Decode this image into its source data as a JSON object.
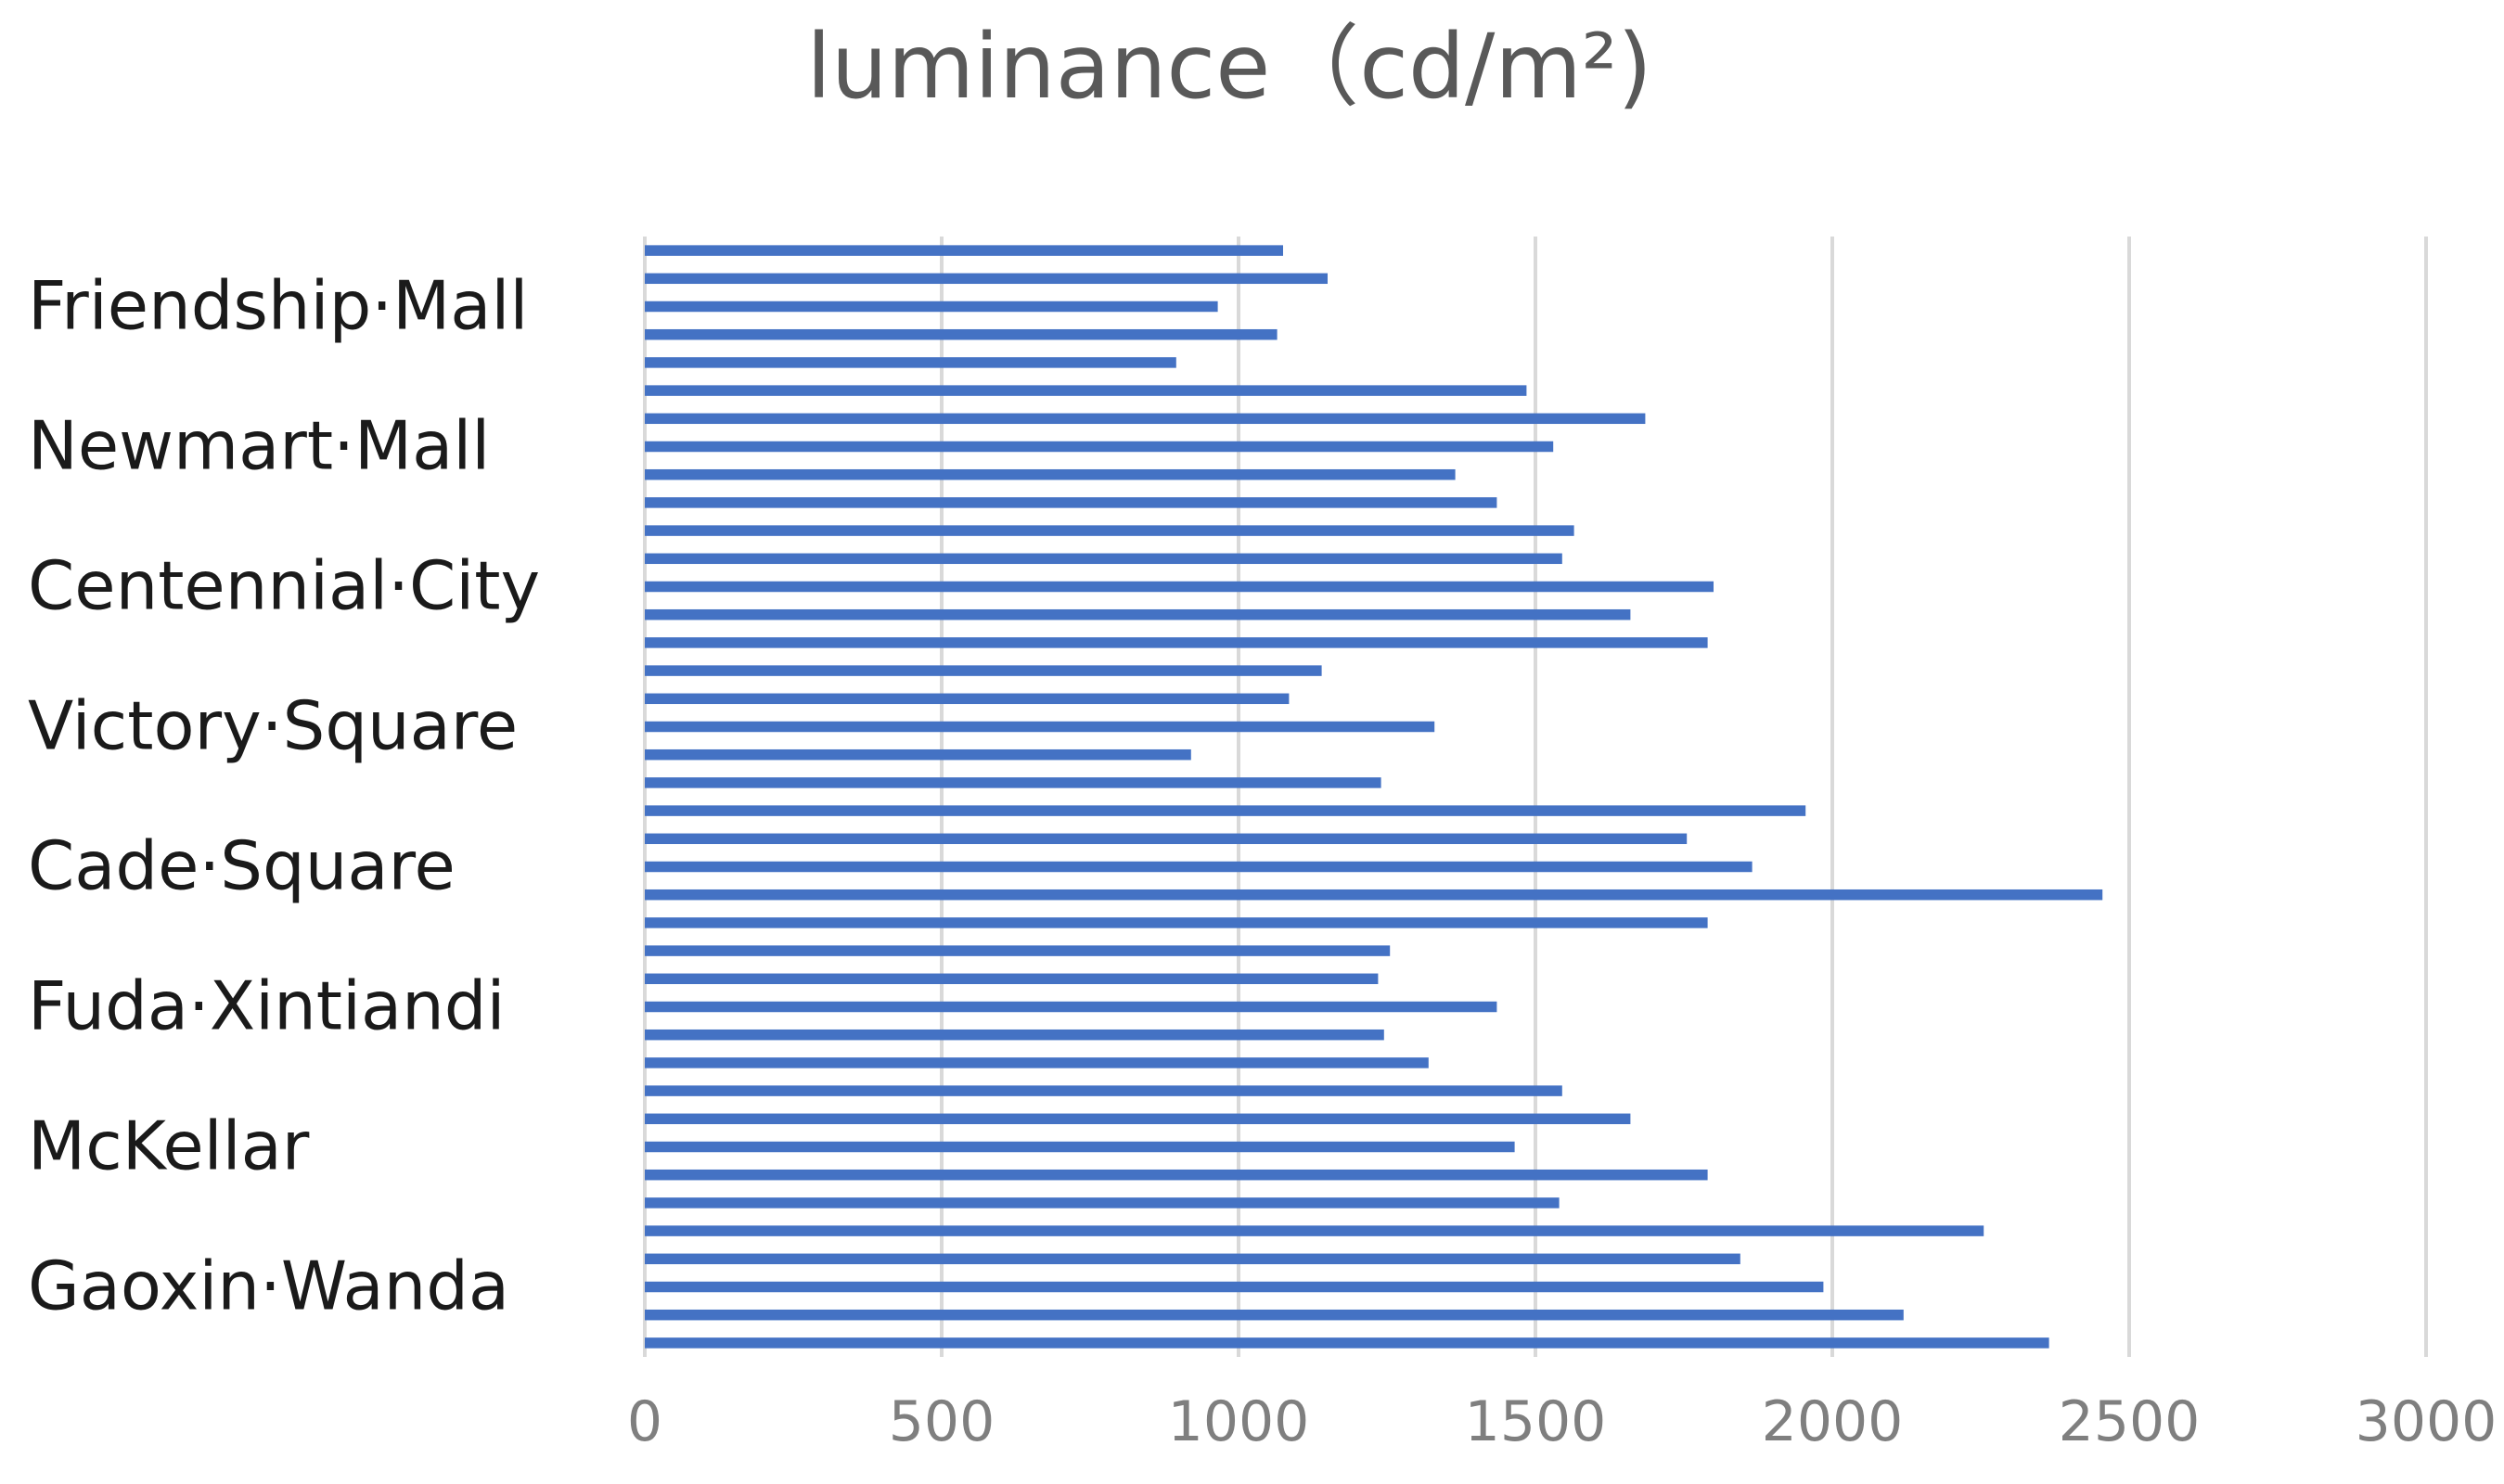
{
  "chart_data": {
    "type": "bar",
    "orientation": "horizontal",
    "title": "luminance（cd/m²)",
    "xlabel": "",
    "ylabel": "",
    "xlim": [
      0,
      3000
    ],
    "x_ticks": [
      0,
      500,
      1000,
      1500,
      2000,
      2500,
      3000
    ],
    "grid": true,
    "legend": "none",
    "bar_color": "#4472c4",
    "groups": [
      {
        "name": "Friendship·Mall",
        "values": [
          1075,
          1150,
          965,
          1065,
          895
        ]
      },
      {
        "name": "Newmart·Mall",
        "values": [
          1485,
          1685,
          1530,
          1365,
          1435
        ]
      },
      {
        "name": "Centennial·City",
        "values": [
          1565,
          1545,
          1800,
          1660,
          1790
        ]
      },
      {
        "name": "Victory·Square",
        "values": [
          1140,
          1085,
          1330,
          920,
          1240
        ]
      },
      {
        "name": "Cade·Square",
        "values": [
          1955,
          1755,
          1865,
          2455,
          1790
        ]
      },
      {
        "name": "Fuda·Xintiandi",
        "values": [
          1255,
          1235,
          1435,
          1245,
          1320
        ]
      },
      {
        "name": "McKellar",
        "values": [
          1545,
          1660,
          1465,
          1790,
          1540
        ]
      },
      {
        "name": "Gaoxin·Wanda",
        "values": [
          2255,
          1845,
          1985,
          2120,
          2365
        ]
      }
    ]
  }
}
